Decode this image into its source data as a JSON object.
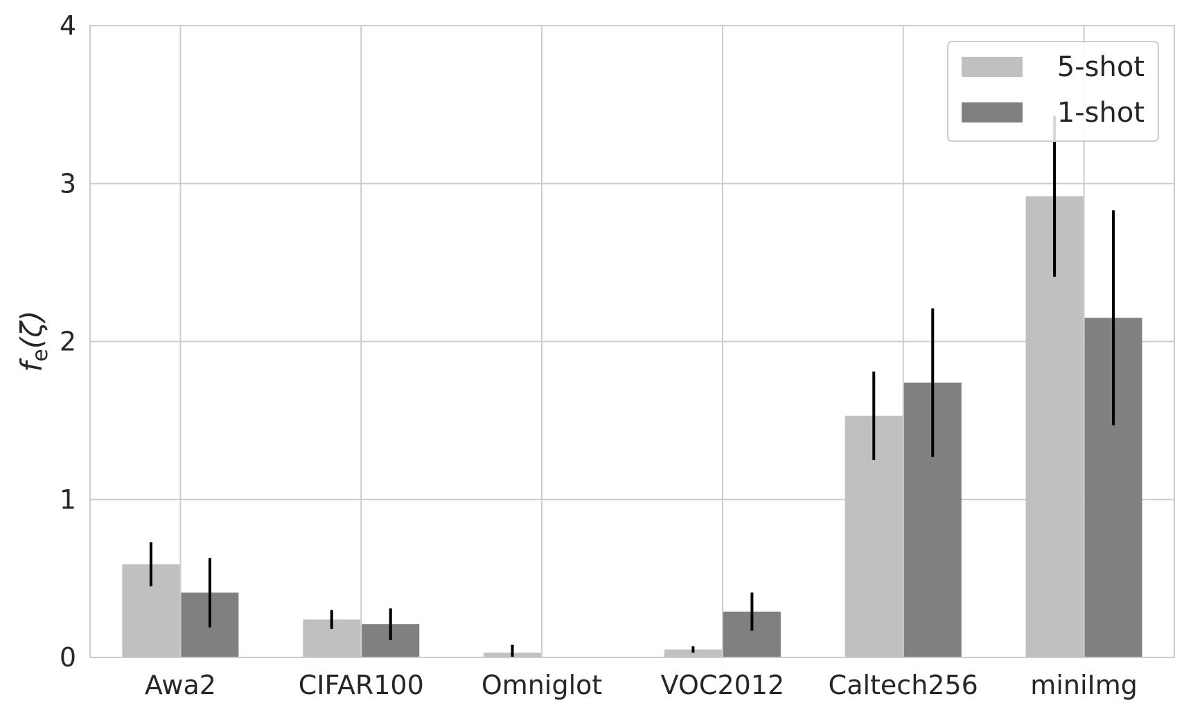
{
  "chart_data": {
    "type": "bar",
    "title": "",
    "xlabel": "",
    "ylabel": "f",
    "ylabel_subscript": "e",
    "ylabel_arg": "(ζ)",
    "categories": [
      "Awa2",
      "CIFAR100",
      "Omniglot",
      "VOC2012",
      "Caltech256",
      "miniImg"
    ],
    "series": [
      {
        "name": "5-shot",
        "color": "#c0c0c0",
        "values": [
          0.59,
          0.24,
          0.03,
          0.05,
          1.53,
          2.92
        ],
        "errors": [
          0.14,
          0.06,
          0.05,
          0.02,
          0.28,
          0.51
        ]
      },
      {
        "name": "1-shot",
        "color": "#808080",
        "values": [
          0.41,
          0.21,
          0.0,
          0.29,
          1.74,
          2.15
        ],
        "errors": [
          0.22,
          0.1,
          0.0,
          0.12,
          0.47,
          0.68
        ]
      }
    ],
    "ylim": [
      0,
      4
    ],
    "yticks": [
      "0",
      "1",
      "2",
      "3",
      "4"
    ],
    "grid": true,
    "legend_position": "top-right"
  }
}
